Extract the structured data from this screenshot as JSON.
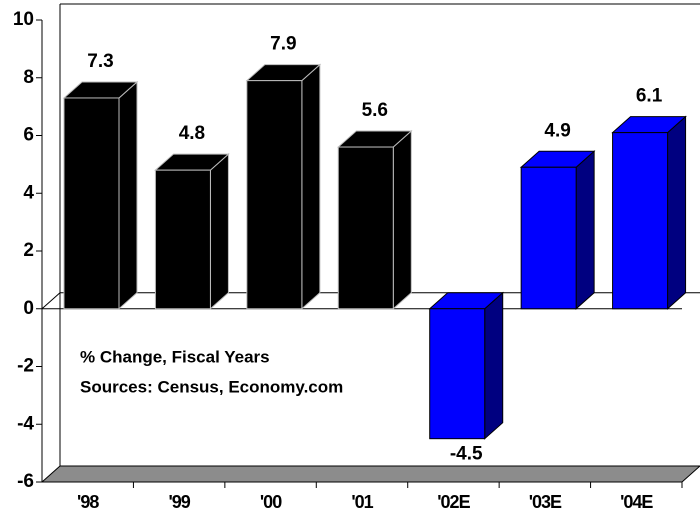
{
  "chart_data": {
    "type": "bar3d",
    "categories": [
      "'98",
      "'99",
      "'00",
      "'01",
      "'02E",
      "'03E",
      "'04E"
    ],
    "values": [
      7.3,
      4.8,
      7.9,
      5.6,
      -4.5,
      4.9,
      6.1
    ],
    "colors": [
      "#000000",
      "#000000",
      "#000000",
      "#000000",
      "#0000ff",
      "#0000ff",
      "#0000ff"
    ],
    "ylim": [
      -6,
      10
    ],
    "yticks": [
      -6,
      -4,
      -2,
      0,
      2,
      4,
      6,
      8,
      10
    ],
    "annotation": [
      "% Change, Fiscal Years",
      "Sources: Census, Economy.com"
    ]
  }
}
